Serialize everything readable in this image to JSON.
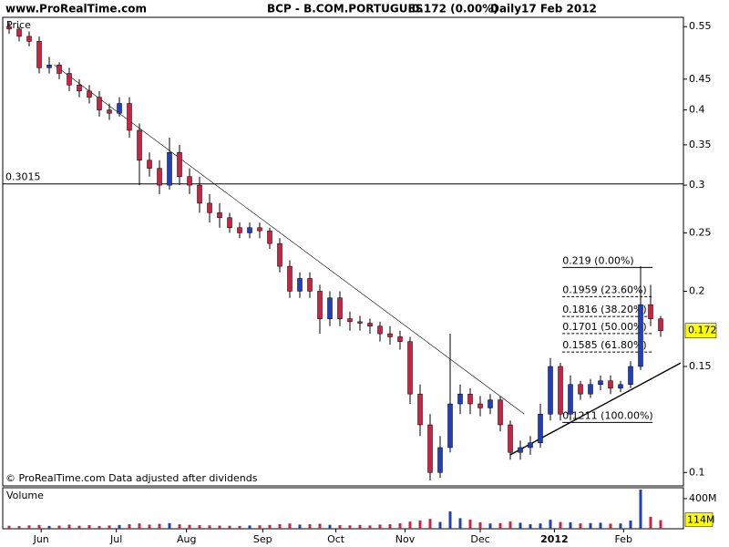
{
  "header": {
    "site": "www.ProRealTime.com"
  },
  "chart_data": {
    "type": "candlestick",
    "title": "BCP - B.COM.PORTUGUES",
    "last_change": "0.172 (0.00%)",
    "period": "Daily",
    "date": "17 Feb 2012",
    "y_label": "Price",
    "footer": "© ProRealTime.com  Data adjusted after dividends",
    "log_scale": true,
    "ylim": [
      0.095,
      0.57
    ],
    "yticks": [
      0.1,
      0.15,
      0.2,
      0.25,
      0.3,
      0.35,
      0.4,
      0.45,
      0.55
    ],
    "categories": [
      null,
      null,
      null,
      null,
      null,
      null,
      null,
      null,
      null,
      null,
      null,
      null,
      null,
      null,
      null,
      null,
      null,
      null,
      null,
      null,
      null,
      null,
      null,
      null,
      null,
      null,
      null,
      null,
      null,
      null,
      null,
      null,
      null,
      null,
      null,
      null,
      null,
      null,
      null,
      null,
      null,
      null,
      null,
      null,
      null,
      null,
      null,
      null,
      null,
      null,
      null,
      null,
      null,
      null,
      null,
      null,
      null,
      null,
      null,
      null,
      null,
      null,
      null,
      null,
      null,
      null
    ],
    "xticks": [
      {
        "value": 3.2,
        "label": "Jun"
      },
      {
        "value": 10.7,
        "label": "Jul"
      },
      {
        "value": 17.7,
        "label": "Aug"
      },
      {
        "value": 25.3,
        "label": "Sep"
      },
      {
        "value": 32.6,
        "label": "Oct"
      },
      {
        "value": 39.5,
        "label": "Nov"
      },
      {
        "value": 47,
        "label": "Dec"
      },
      {
        "value": 54.4,
        "label": "2012"
      },
      {
        "value": 61.3,
        "label": "Feb"
      }
    ],
    "up_color": "#1f3fbf",
    "down_color": "#cc2244",
    "open": [
      0.55,
      0.545,
      0.53,
      0.52,
      0.47,
      0.475,
      0.46,
      0.44,
      0.43,
      0.42,
      0.4,
      0.395,
      0.41,
      0.37,
      0.33,
      0.32,
      0.3,
      0.34,
      0.31,
      0.3,
      0.28,
      0.27,
      0.265,
      0.255,
      0.25,
      0.255,
      0.252,
      0.24,
      0.22,
      0.2,
      0.21,
      0.2,
      0.18,
      0.195,
      0.18,
      0.178,
      0.177,
      0.175,
      0.17,
      0.168,
      0.165,
      0.135,
      0.12,
      0.1,
      0.11,
      0.13,
      0.135,
      0.13,
      0.128,
      0.132,
      0.12,
      0.108,
      0.11,
      0.112,
      0.125,
      0.15,
      0.125,
      0.14,
      0.135,
      0.14,
      0.142,
      0.138,
      0.14,
      0.15,
      0.19,
      0.18
    ],
    "high": [
      0.56,
      0.55,
      0.54,
      0.53,
      0.49,
      0.48,
      0.47,
      0.45,
      0.44,
      0.43,
      0.41,
      0.42,
      0.42,
      0.38,
      0.34,
      0.33,
      0.36,
      0.35,
      0.32,
      0.31,
      0.29,
      0.28,
      0.27,
      0.26,
      0.26,
      0.26,
      0.255,
      0.245,
      0.225,
      0.215,
      0.215,
      0.205,
      0.2,
      0.2,
      0.185,
      0.182,
      0.18,
      0.178,
      0.175,
      0.172,
      0.168,
      0.14,
      0.125,
      0.115,
      0.17,
      0.14,
      0.138,
      0.134,
      0.135,
      0.134,
      0.122,
      0.113,
      0.115,
      0.13,
      0.155,
      0.152,
      0.145,
      0.142,
      0.143,
      0.145,
      0.145,
      0.142,
      0.153,
      0.22,
      0.205,
      0.182
    ],
    "low": [
      0.535,
      0.52,
      0.51,
      0.46,
      0.46,
      0.45,
      0.43,
      0.42,
      0.41,
      0.39,
      0.385,
      0.39,
      0.36,
      0.3,
      0.31,
      0.29,
      0.295,
      0.3,
      0.29,
      0.27,
      0.26,
      0.255,
      0.25,
      0.245,
      0.245,
      0.245,
      0.235,
      0.215,
      0.195,
      0.195,
      0.195,
      0.17,
      0.175,
      0.175,
      0.172,
      0.172,
      0.17,
      0.165,
      0.163,
      0.16,
      0.13,
      0.115,
      0.097,
      0.098,
      0.108,
      0.125,
      0.125,
      0.124,
      0.125,
      0.117,
      0.105,
      0.105,
      0.107,
      0.11,
      0.122,
      0.122,
      0.122,
      0.132,
      0.133,
      0.137,
      0.135,
      0.136,
      0.138,
      0.148,
      0.175,
      0.168
    ],
    "close": [
      0.545,
      0.53,
      0.52,
      0.47,
      0.475,
      0.46,
      0.44,
      0.43,
      0.42,
      0.4,
      0.395,
      0.41,
      0.37,
      0.33,
      0.32,
      0.3,
      0.34,
      0.31,
      0.3,
      0.28,
      0.27,
      0.265,
      0.255,
      0.25,
      0.255,
      0.252,
      0.24,
      0.22,
      0.2,
      0.21,
      0.2,
      0.18,
      0.195,
      0.18,
      0.178,
      0.177,
      0.175,
      0.17,
      0.168,
      0.165,
      0.135,
      0.12,
      0.1,
      0.11,
      0.13,
      0.135,
      0.13,
      0.128,
      0.132,
      0.12,
      0.108,
      0.11,
      0.112,
      0.125,
      0.15,
      0.125,
      0.14,
      0.135,
      0.14,
      0.142,
      0.138,
      0.14,
      0.15,
      0.19,
      0.18,
      0.172
    ],
    "last_close_label": "0.172",
    "hline": {
      "value": 0.3015,
      "label": "0.3015"
    },
    "trendlines": [
      {
        "x": [
          4.5,
          51.4
        ],
        "y": [
          0.475,
          0.125
        ]
      },
      {
        "x": [
          50,
          67
        ],
        "y": [
          0.107,
          0.152
        ]
      }
    ],
    "fib_x": [
      55.2,
      64.2
    ],
    "fib_levels": [
      {
        "value": 0.219,
        "label": "0.219 (0.00%)"
      },
      {
        "value": 0.1959,
        "label": "0.1959 (23.60%)"
      },
      {
        "value": 0.1816,
        "label": "0.1816 (38.20%)"
      },
      {
        "value": 0.1701,
        "label": "0.1701 (50.00%)"
      },
      {
        "value": 0.1585,
        "label": "0.1585 (61.80%)"
      },
      {
        "value": 0.1211,
        "label": "0.1211 (100.00%)"
      }
    ],
    "volume": {
      "label": "Volume",
      "ylim": [
        0,
        520
      ],
      "yticks": [
        {
          "value": 400,
          "label": "400M"
        }
      ],
      "values": [
        40,
        35,
        45,
        50,
        38,
        42,
        55,
        40,
        48,
        36,
        44,
        50,
        60,
        70,
        55,
        65,
        75,
        58,
        52,
        48,
        45,
        42,
        40,
        38,
        44,
        46,
        50,
        62,
        70,
        55,
        60,
        66,
        52,
        48,
        45,
        50,
        44,
        55,
        60,
        72,
        95,
        110,
        130,
        90,
        230,
        140,
        120,
        85,
        70,
        75,
        95,
        80,
        60,
        70,
        120,
        90,
        85,
        70,
        75,
        80,
        68,
        70,
        110,
        520,
        160,
        114
      ],
      "last_value_label": "114M"
    }
  }
}
